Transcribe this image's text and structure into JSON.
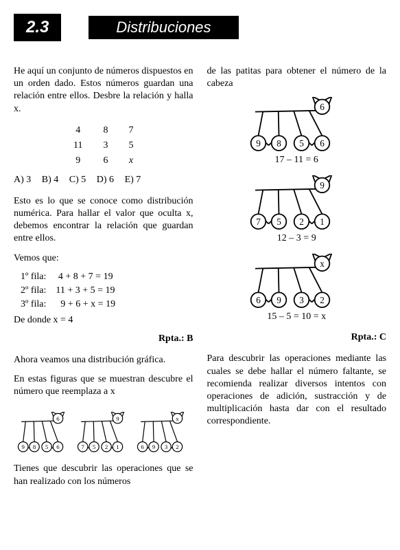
{
  "header": {
    "section": "2.3",
    "title": "Distribuciones"
  },
  "left": {
    "intro": "He aquí un conjunto de números dispuestos en un orden dado. Estos números guardan una relación entre ellos. Desbre la relación y halla x.",
    "table": [
      [
        "4",
        "8",
        "7"
      ],
      [
        "11",
        "3",
        "5"
      ],
      [
        "9",
        "6",
        "x"
      ]
    ],
    "options": [
      "A) 3",
      "B) 4",
      "C) 5",
      "D) 6",
      "E) 7"
    ],
    "explain1": "Esto es lo que se conoce como distribución numérica. Para hallar el valor que oculta x, debemos encontrar la relación que guardan entre ellos.",
    "vemos": "Vemos que:",
    "rows": [
      {
        "label": "1º fila:",
        "eq": "4 + 8 + 7 = 19"
      },
      {
        "label": "2º fila:",
        "eq": "11 + 3 + 5 = 19"
      },
      {
        "label": "3º fila:",
        "eq": "9 + 6 + x = 19"
      }
    ],
    "donde": "De donde x = 4",
    "rpta": "Rpta.: B",
    "grafica": "Ahora veamos una distribución gráfica.",
    "figuras": "En estas figuras que se muestran descubre el número que reemplaza a x",
    "bottom": "Tienes que descubrir las operaciones que se han realizado con los números",
    "cats_small": [
      {
        "head": "6",
        "feet": [
          "9",
          "8",
          "5",
          "6"
        ]
      },
      {
        "head": "9",
        "feet": [
          "7",
          "5",
          "2",
          "1"
        ]
      },
      {
        "head": "x",
        "feet": [
          "6",
          "9",
          "3",
          "2"
        ]
      }
    ]
  },
  "right": {
    "intro": "de las patitas para obtener el número de la cabeza",
    "cats": [
      {
        "head": "6",
        "feet": [
          "9",
          "8",
          "5",
          "6"
        ],
        "eq": "17   –   11 = 6"
      },
      {
        "head": "9",
        "feet": [
          "7",
          "5",
          "2",
          "1"
        ],
        "eq": "12   –    3 = 9"
      },
      {
        "head": "x",
        "feet": [
          "6",
          "9",
          "3",
          "2"
        ],
        "eq": "15   –    5 = 10 = x"
      }
    ],
    "rpta": "Rpta.: C",
    "final": "Para descubrir las operaciones mediante las cuales se debe hallar el número faltante, se recomienda realizar diversos intentos con operaciones de adición, sustracción y de multiplicación hasta dar con el resultado correspondiente."
  }
}
